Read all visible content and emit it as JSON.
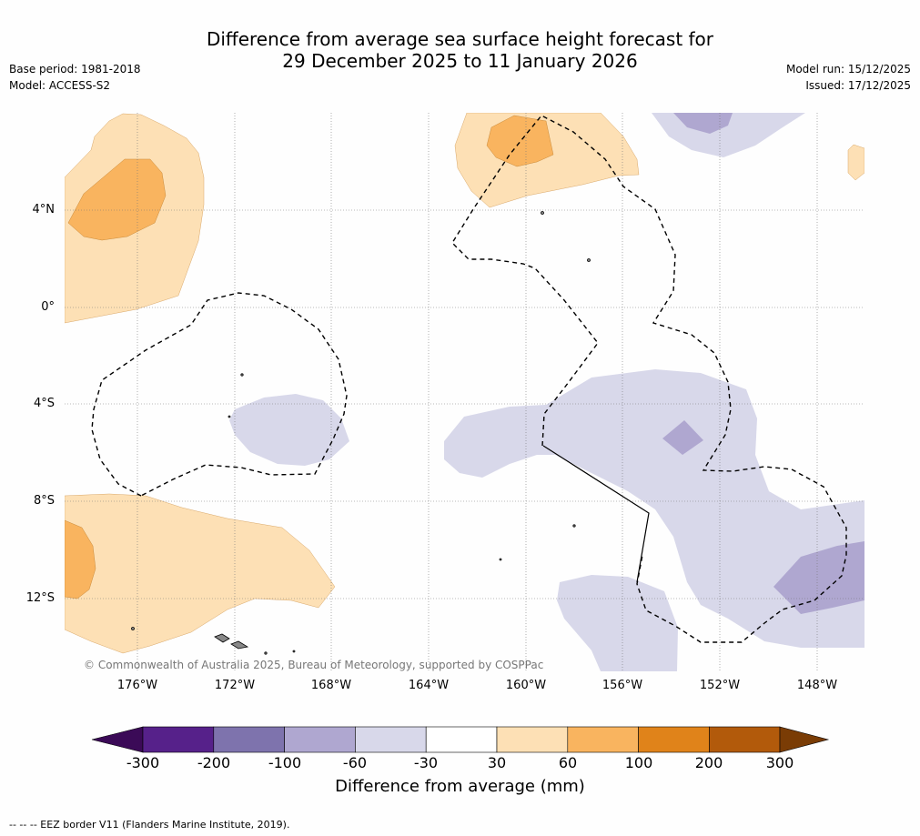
{
  "title": {
    "line1": "Difference from average sea surface height forecast for",
    "line2": "29 December 2025 to 11 January 2026"
  },
  "meta_left": {
    "base_period": "Base period: 1981-2018",
    "model": "Model: ACCESS-S2"
  },
  "meta_right": {
    "model_run": "Model run: 15/12/2025",
    "issued": "Issued: 17/12/2025"
  },
  "map": {
    "latitude_labels": [
      "4°N",
      "0°",
      "4°S",
      "8°S",
      "12°S"
    ],
    "longitude_labels": [
      "176°W",
      "172°W",
      "168°W",
      "164°W",
      "160°W",
      "156°W",
      "152°W",
      "148°W"
    ],
    "copyright": "© Commonwealth of Australia 2025, Bureau of Meteorology, supported by COSPPac"
  },
  "colorbar": {
    "title": "Difference from average (mm)",
    "ticks": [
      "-300",
      "-200",
      "-100",
      "-60",
      "-30",
      "30",
      "60",
      "100",
      "200",
      "300"
    ],
    "colors": [
      "#3b0a57",
      "#56218a",
      "#7e73ad",
      "#afa7d0",
      "#d8d8ea",
      "#ffffff",
      "#fde0b5",
      "#f9b45f",
      "#e0831a",
      "#b25a0b",
      "#7a3c05"
    ]
  },
  "footer": {
    "legend": "--  --  -- EEZ border V11 (Flanders Marine Institute, 2019)."
  }
}
